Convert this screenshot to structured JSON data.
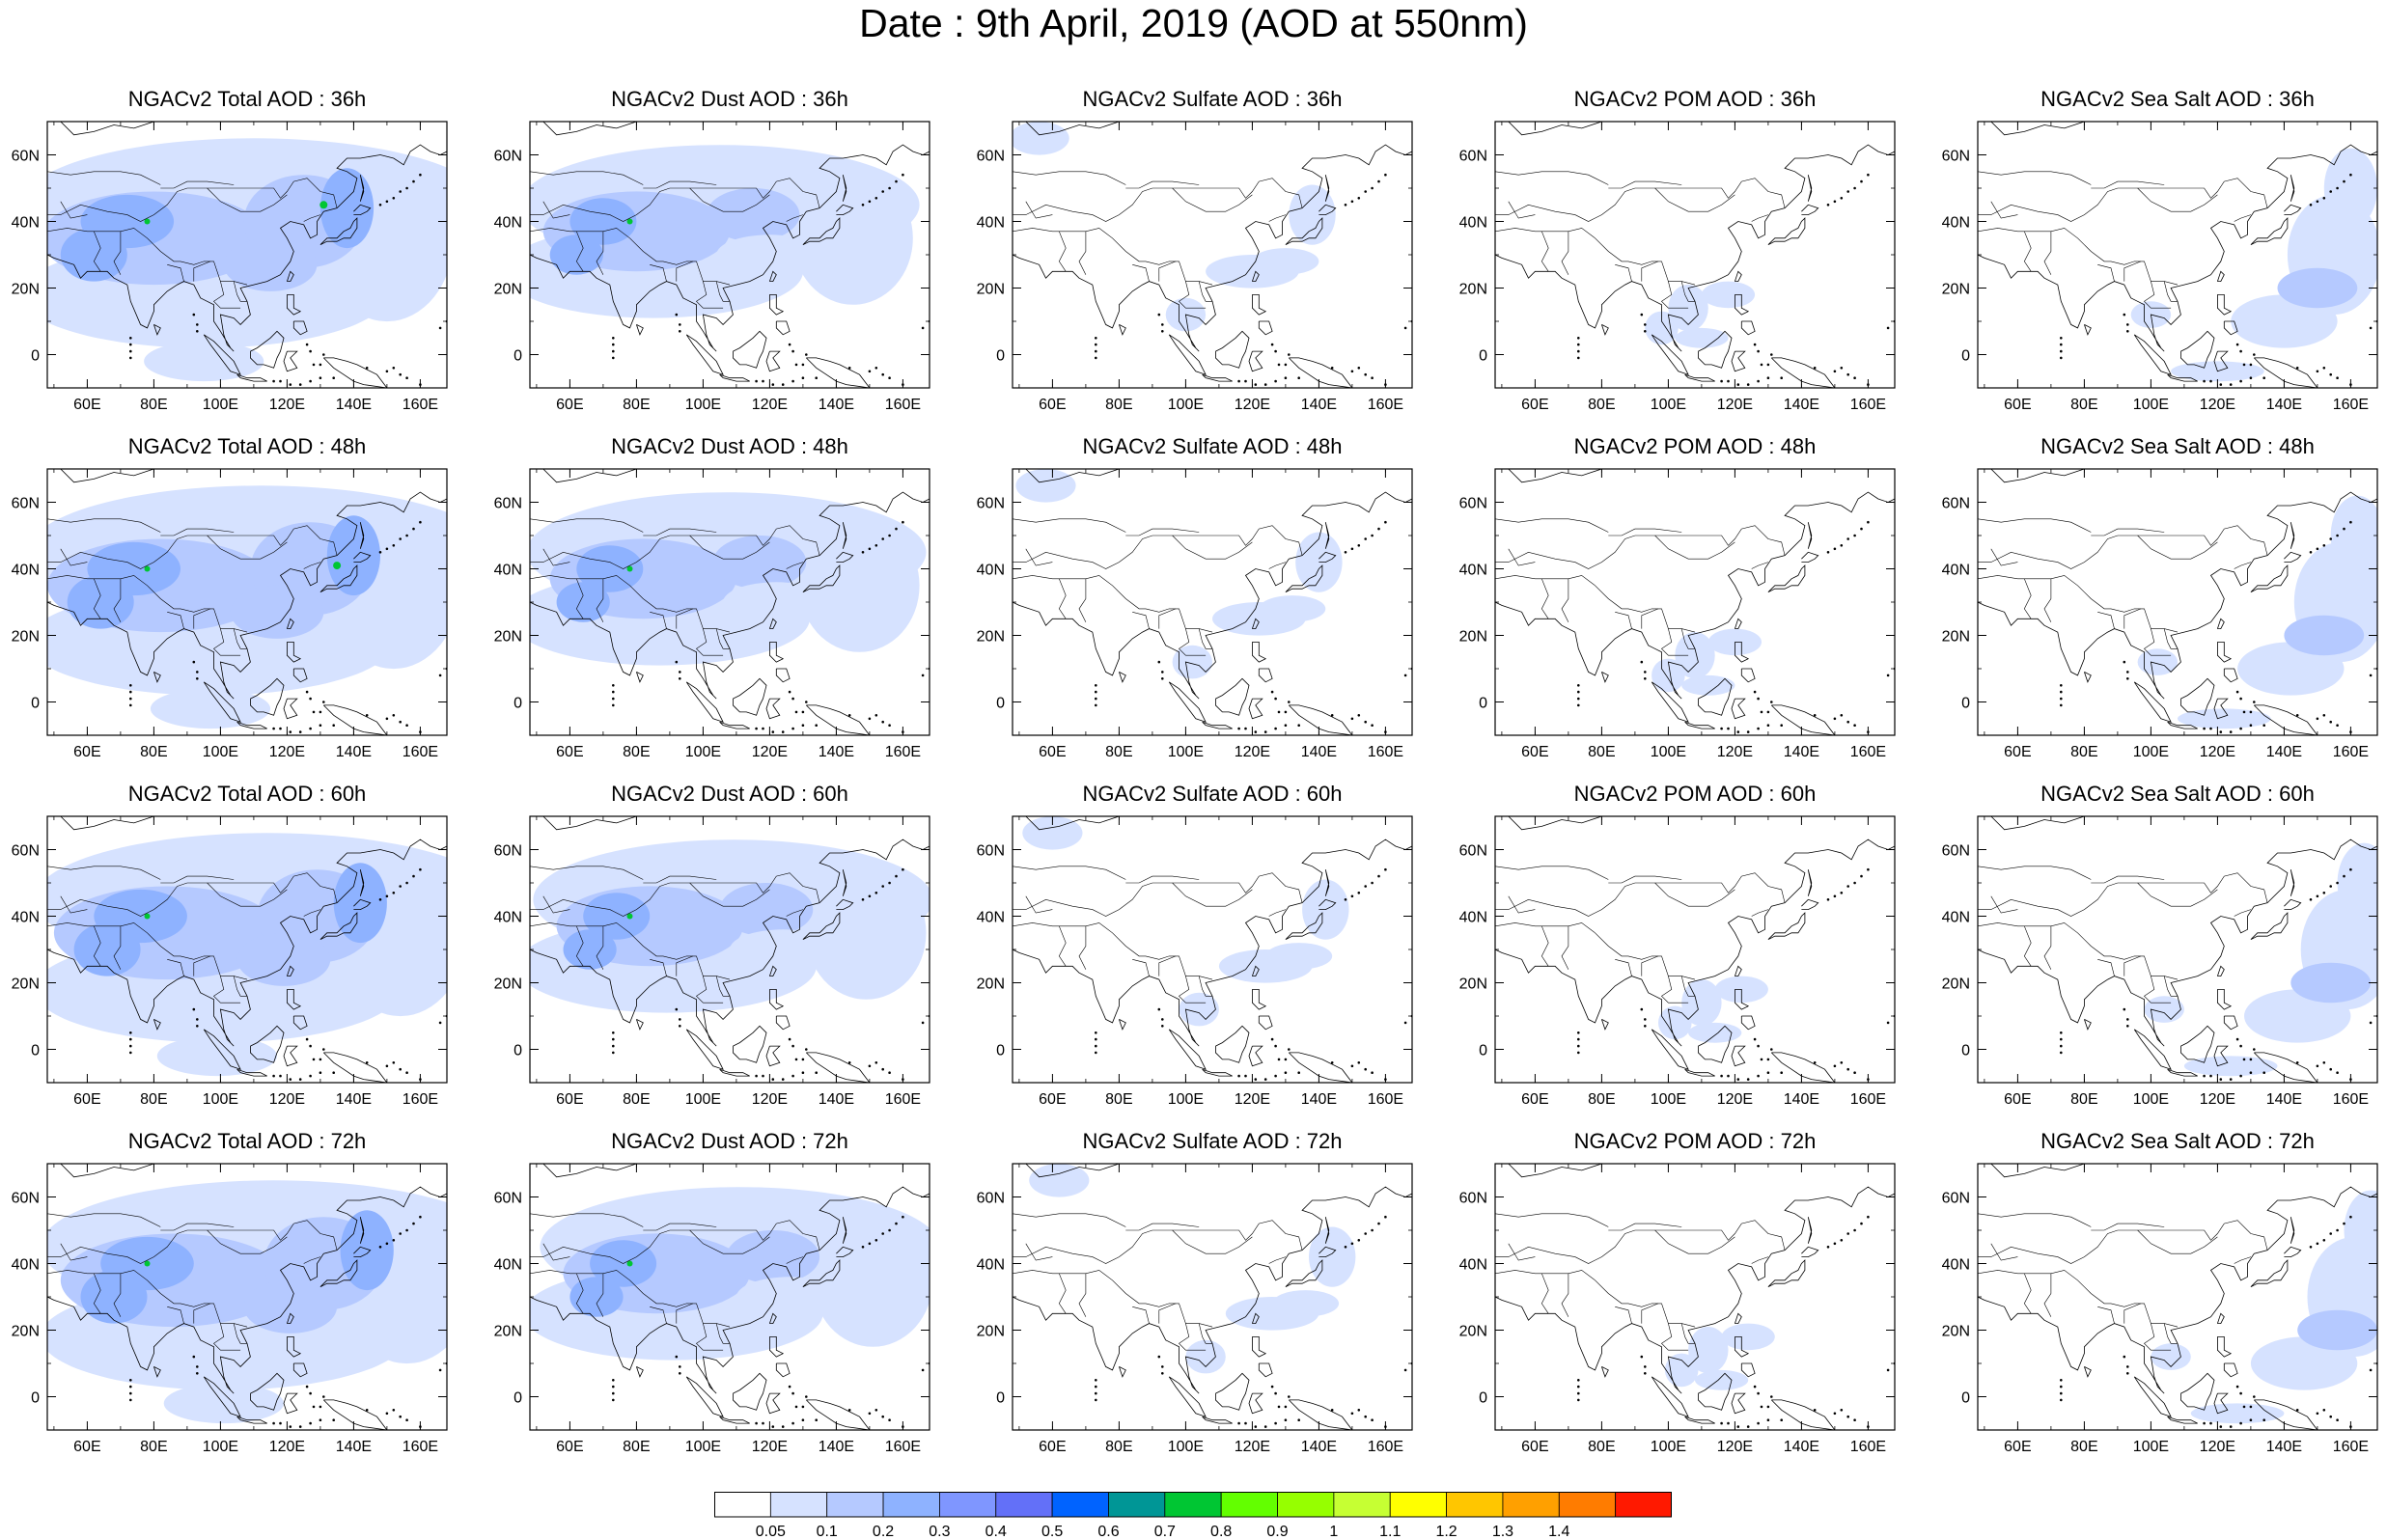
{
  "title": "Date : 9th April, 2019 (AOD at 550nm)",
  "map": {
    "lon_ticks": [
      "60E",
      "80E",
      "100E",
      "120E",
      "140E",
      "160E"
    ],
    "lat_ticks": [
      "60N",
      "40N",
      "20N",
      "0"
    ],
    "lon_range": [
      48,
      168
    ],
    "lat_range": [
      -10,
      70
    ]
  },
  "panels": [
    [
      "NGACv2 Total AOD : 36h",
      "NGACv2 Dust AOD : 36h",
      "NGACv2 Sulfate AOD : 36h",
      "NGACv2 POM AOD : 36h",
      "NGACv2 Sea Salt AOD : 36h"
    ],
    [
      "NGACv2 Total AOD : 48h",
      "NGACv2 Dust AOD : 48h",
      "NGACv2 Sulfate AOD : 48h",
      "NGACv2 POM AOD : 48h",
      "NGACv2 Sea Salt AOD : 48h"
    ],
    [
      "NGACv2 Total AOD : 60h",
      "NGACv2 Dust AOD : 60h",
      "NGACv2 Sulfate AOD : 60h",
      "NGACv2 POM AOD : 60h",
      "NGACv2 Sea Salt AOD : 60h"
    ],
    [
      "NGACv2 Total AOD : 72h",
      "NGACv2 Dust AOD : 72h",
      "NGACv2 Sulfate AOD : 72h",
      "NGACv2 POM AOD : 72h",
      "NGACv2 Sea Salt  AOD : 72h"
    ]
  ],
  "colorbar": {
    "labels": [
      "0.05",
      "0.1",
      "0.2",
      "0.3",
      "0.4",
      "0.5",
      "0.6",
      "0.7",
      "0.8",
      "0.9",
      "1",
      "1.1",
      "1.2",
      "1.3",
      "1.4"
    ],
    "colors": [
      "#ffffff",
      "#d6e2ff",
      "#b5c9ff",
      "#8eb2ff",
      "#7f96ff",
      "#6370f8",
      "#0063ff",
      "#009696",
      "#00c633",
      "#63ff00",
      "#96ff00",
      "#c6ff33",
      "#ffff00",
      "#ffc600",
      "#ffa000",
      "#ff7c00",
      "#ff1900"
    ]
  },
  "shading_colors": {
    "light": "#d6e2ff",
    "medium": "#b5c9ff",
    "strong": "#8eb2ff",
    "deep": "#7f96ff",
    "peak": "#00c633"
  }
}
